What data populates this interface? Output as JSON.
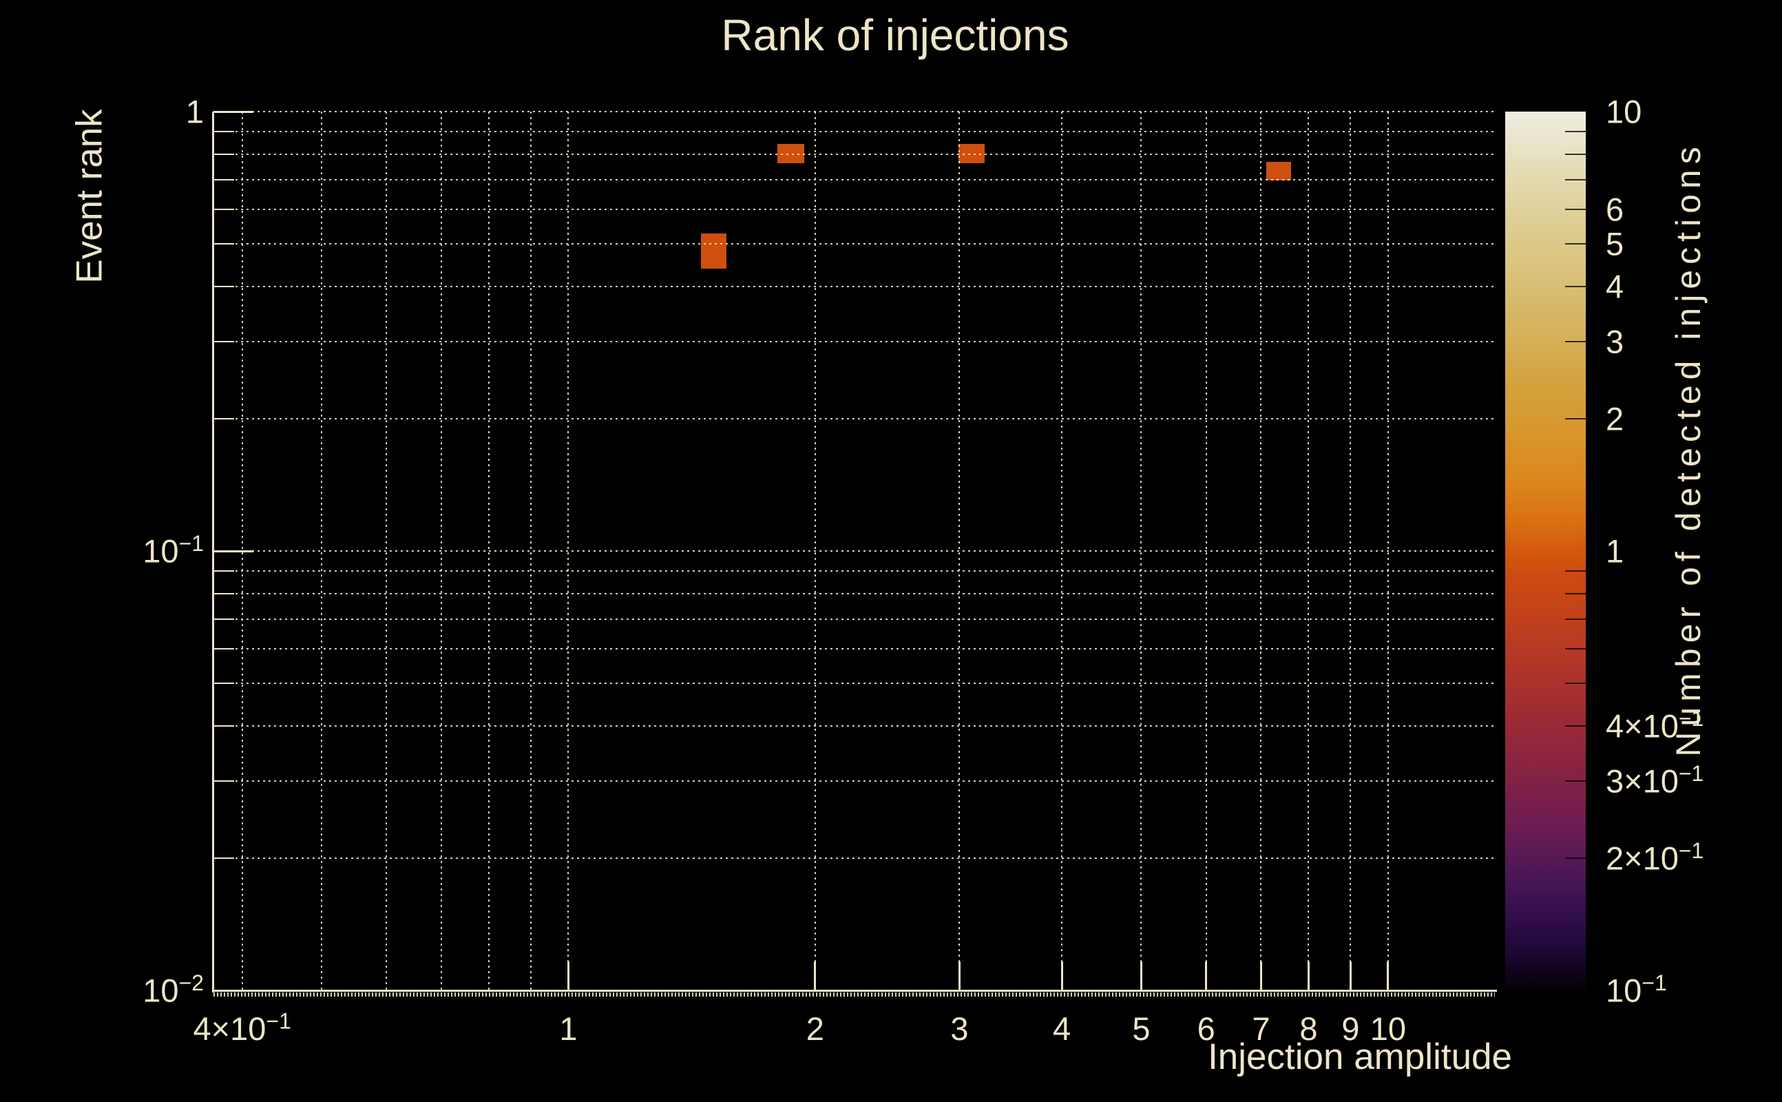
{
  "page": {
    "background": "#000000",
    "text_color": "#EEE5C8"
  },
  "chart_data": {
    "type": "heatmap",
    "title": "Rank of injections",
    "xlabel": "Injection amplitude",
    "ylabel": "Event rank",
    "colorbar_label": "Number of detected injections",
    "grid": "dotted",
    "x_axis": {
      "scale": "log",
      "min": 0.369,
      "max": 13.5,
      "tick_labels": [
        {
          "v": 0.4,
          "label": "4×10^−1"
        },
        {
          "v": 1,
          "label": "1"
        },
        {
          "v": 2,
          "label": "2"
        },
        {
          "v": 3,
          "label": "3"
        },
        {
          "v": 4,
          "label": "4"
        },
        {
          "v": 5,
          "label": "5"
        },
        {
          "v": 6,
          "label": "6"
        },
        {
          "v": 7,
          "label": "7"
        },
        {
          "v": 8,
          "label": "8"
        },
        {
          "v": 9,
          "label": "9"
        },
        {
          "v": 10,
          "label": "10"
        }
      ],
      "gridline_values": [
        0.4,
        0.5,
        0.6,
        0.7,
        0.8,
        0.9,
        1,
        2,
        3,
        4,
        5,
        6,
        7,
        8,
        9,
        10
      ],
      "major_tick_values": [
        1,
        2,
        3,
        4,
        5,
        6,
        7,
        8,
        9,
        10
      ]
    },
    "y_axis": {
      "scale": "log",
      "min": 0.01,
      "max": 1.0,
      "tick_labels": [
        {
          "v": 1,
          "label": "1"
        },
        {
          "v": 0.1,
          "label": "10^−1"
        },
        {
          "v": 0.01,
          "label": "10^−2"
        }
      ],
      "gridline_values": [
        1,
        0.9,
        0.8,
        0.7,
        0.6,
        0.5,
        0.4,
        0.3,
        0.2,
        0.1,
        0.09,
        0.08,
        0.07,
        0.06,
        0.05,
        0.04,
        0.03,
        0.02
      ],
      "major_tick_values": [
        1,
        0.1
      ],
      "minor_tick_values": [
        0.9,
        0.8,
        0.7,
        0.6,
        0.5,
        0.4,
        0.3,
        0.2,
        0.09,
        0.08,
        0.07,
        0.06,
        0.05,
        0.04,
        0.03,
        0.02
      ]
    },
    "colorbar": {
      "scale": "log",
      "min": 0.1,
      "max": 10,
      "tick_labels": [
        {
          "v": 10,
          "label": "10"
        },
        {
          "v": 6,
          "label": "6"
        },
        {
          "v": 5,
          "label": "5"
        },
        {
          "v": 4,
          "label": "4"
        },
        {
          "v": 3,
          "label": "3"
        },
        {
          "v": 2,
          "label": "2"
        },
        {
          "v": 1,
          "label": "1"
        },
        {
          "v": 0.4,
          "label": "4×10^−1"
        },
        {
          "v": 0.3,
          "label": "3×10^−1"
        },
        {
          "v": 0.2,
          "label": "2×10^−1"
        },
        {
          "v": 0.1,
          "label": "10^−1"
        }
      ],
      "minor_tick_values": [
        9,
        8,
        7,
        6,
        5,
        4,
        3,
        2,
        0.9,
        0.8,
        0.7,
        0.6,
        0.5,
        0.4,
        0.3,
        0.2
      ],
      "gradient_stops": [
        {
          "p": 0,
          "c": "#F1EEE2"
        },
        {
          "p": 3,
          "c": "#EAE5CE"
        },
        {
          "p": 8,
          "c": "#E3D9AE"
        },
        {
          "p": 13,
          "c": "#DECD92"
        },
        {
          "p": 19,
          "c": "#D9C077"
        },
        {
          "p": 25,
          "c": "#D5B25C"
        },
        {
          "p": 31,
          "c": "#D3A33E"
        },
        {
          "p": 37,
          "c": "#D8952B"
        },
        {
          "p": 42,
          "c": "#DB871C"
        },
        {
          "p": 46,
          "c": "#DA7414"
        },
        {
          "p": 50,
          "c": "#D4590D"
        },
        {
          "p": 53,
          "c": "#CC4A11"
        },
        {
          "p": 58,
          "c": "#C0401D"
        },
        {
          "p": 63,
          "c": "#B03628"
        },
        {
          "p": 68,
          "c": "#A02C32"
        },
        {
          "p": 73,
          "c": "#8E253E"
        },
        {
          "p": 78,
          "c": "#7A1F4B"
        },
        {
          "p": 83,
          "c": "#641B54"
        },
        {
          "p": 87,
          "c": "#4C1656"
        },
        {
          "p": 90,
          "c": "#3A114F"
        },
        {
          "p": 93,
          "c": "#2B0C45"
        },
        {
          "p": 96,
          "c": "#1B0730"
        },
        {
          "p": 98,
          "c": "#0E041A"
        },
        {
          "p": 100,
          "c": "#05020A"
        }
      ]
    },
    "cell_color": "#CF500E",
    "cells": [
      {
        "amp": [
          1.8,
          1.94
        ],
        "rank": [
          0.763,
          0.844
        ],
        "count": 1
      },
      {
        "amp": [
          2.99,
          3.22
        ],
        "rank": [
          0.763,
          0.844
        ],
        "count": 1
      },
      {
        "amp": [
          7.1,
          7.62
        ],
        "rank": [
          0.697,
          0.768
        ],
        "count": 1
      },
      {
        "amp": [
          1.45,
          1.56
        ],
        "rank": [
          0.439,
          0.528
        ],
        "count": 1
      }
    ]
  }
}
